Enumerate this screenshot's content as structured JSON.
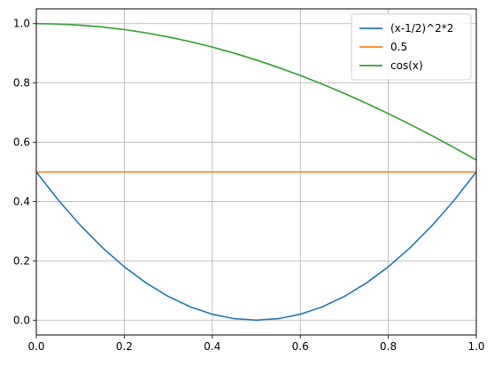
{
  "chart_data": {
    "type": "line",
    "title": "",
    "xlabel": "",
    "ylabel": "",
    "xlim": [
      0,
      1
    ],
    "ylim": [
      -0.05,
      1.05
    ],
    "grid": true,
    "legend_position": "top-right",
    "x_ticks": [
      {
        "value": 0.0,
        "label": "0.0"
      },
      {
        "value": 0.2,
        "label": "0.2"
      },
      {
        "value": 0.4,
        "label": "0.4"
      },
      {
        "value": 0.6,
        "label": "0.6"
      },
      {
        "value": 0.8,
        "label": "0.8"
      },
      {
        "value": 1.0,
        "label": "1.0"
      }
    ],
    "y_ticks": [
      {
        "value": 0.0,
        "label": "0.0"
      },
      {
        "value": 0.2,
        "label": "0.2"
      },
      {
        "value": 0.4,
        "label": "0.4"
      },
      {
        "value": 0.6,
        "label": "0.6"
      },
      {
        "value": 0.8,
        "label": "0.8"
      },
      {
        "value": 1.0,
        "label": "1.0"
      }
    ],
    "x": [
      0.0,
      0.05,
      0.1,
      0.15,
      0.2,
      0.25,
      0.3,
      0.35,
      0.4,
      0.45,
      0.5,
      0.55,
      0.6,
      0.65,
      0.7,
      0.75,
      0.8,
      0.85,
      0.9,
      0.95,
      1.0
    ],
    "series": [
      {
        "name": "(x-1/2)^2*2",
        "color": "#1f77b4",
        "values": [
          0.5,
          0.405,
          0.32,
          0.245,
          0.18,
          0.125,
          0.08,
          0.045,
          0.02,
          0.005,
          0.0,
          0.005,
          0.02,
          0.045,
          0.08,
          0.125,
          0.18,
          0.245,
          0.32,
          0.405,
          0.5
        ]
      },
      {
        "name": "0.5",
        "color": "#ff7f0e",
        "values": [
          0.5,
          0.5,
          0.5,
          0.5,
          0.5,
          0.5,
          0.5,
          0.5,
          0.5,
          0.5,
          0.5,
          0.5,
          0.5,
          0.5,
          0.5,
          0.5,
          0.5,
          0.5,
          0.5,
          0.5,
          0.5
        ]
      },
      {
        "name": "cos(x)",
        "color": "#2ca02c",
        "values": [
          1.0,
          0.9988,
          0.995,
          0.9888,
          0.9801,
          0.9689,
          0.9553,
          0.9394,
          0.9211,
          0.9004,
          0.8776,
          0.8525,
          0.8253,
          0.7961,
          0.7648,
          0.7317,
          0.6967,
          0.66,
          0.6216,
          0.5817,
          0.5403
        ]
      }
    ]
  }
}
